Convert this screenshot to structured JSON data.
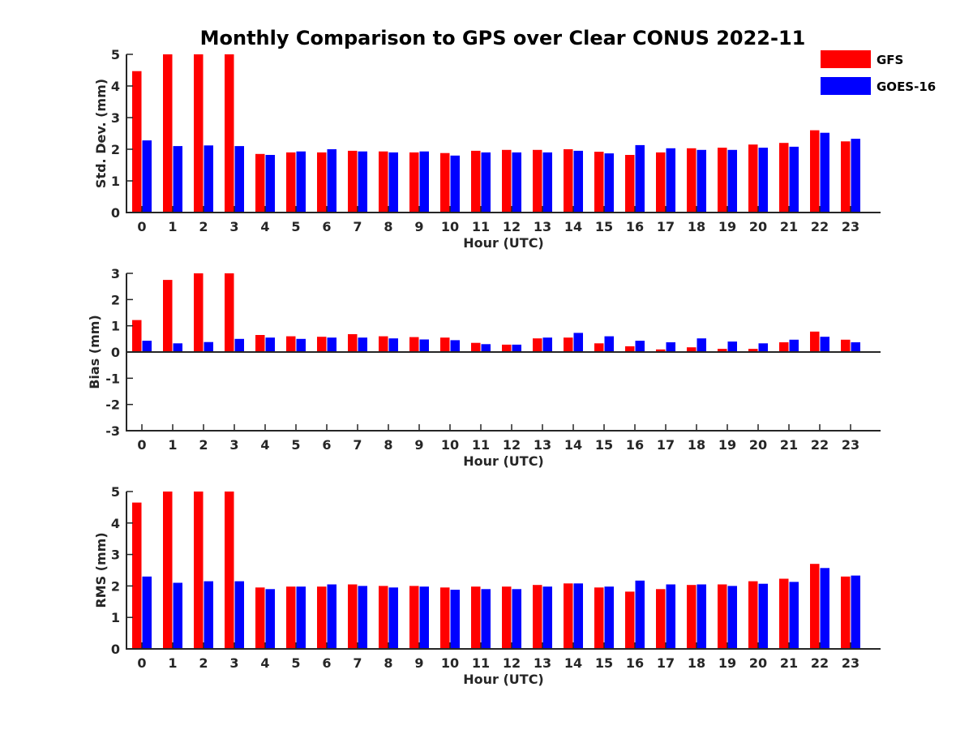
{
  "title": "Monthly Comparison to GPS over Clear CONUS 2022-11",
  "colors": {
    "GFS": "#ff0000",
    "GOES-16": "#0000ff"
  },
  "chart_data": [
    {
      "type": "bar",
      "ylabel": "Std. Dev. (mm)",
      "xlabel": "Hour (UTC)",
      "ylim": [
        0,
        5
      ],
      "yticks": [
        "0",
        "1",
        "2",
        "3",
        "4",
        "5"
      ],
      "categories": [
        "0",
        "1",
        "2",
        "3",
        "4",
        "5",
        "6",
        "7",
        "8",
        "9",
        "10",
        "11",
        "12",
        "13",
        "14",
        "15",
        "16",
        "17",
        "18",
        "19",
        "20",
        "21",
        "22",
        "23"
      ],
      "series": [
        {
          "name": "GFS",
          "values": [
            4.47,
            5.0,
            5.0,
            5.0,
            1.85,
            1.9,
            1.9,
            1.95,
            1.93,
            1.9,
            1.88,
            1.95,
            1.98,
            1.98,
            2.0,
            1.92,
            1.82,
            1.9,
            2.03,
            2.05,
            2.15,
            2.2,
            2.6,
            2.25
          ]
        },
        {
          "name": "GOES-16",
          "values": [
            2.28,
            2.1,
            2.12,
            2.1,
            1.82,
            1.93,
            2.0,
            1.93,
            1.9,
            1.93,
            1.8,
            1.9,
            1.9,
            1.9,
            1.95,
            1.87,
            2.13,
            2.03,
            1.98,
            1.98,
            2.05,
            2.08,
            2.52,
            2.33
          ]
        }
      ]
    },
    {
      "type": "bar",
      "ylabel": "Bias (mm)",
      "xlabel": "Hour (UTC)",
      "ylim": [
        -3,
        3
      ],
      "yticks": [
        "-3",
        "-2",
        "-1",
        "0",
        "1",
        "2",
        "3"
      ],
      "categories": [
        "0",
        "1",
        "2",
        "3",
        "4",
        "5",
        "6",
        "7",
        "8",
        "9",
        "10",
        "11",
        "12",
        "13",
        "14",
        "15",
        "16",
        "17",
        "18",
        "19",
        "20",
        "21",
        "22",
        "23"
      ],
      "series": [
        {
          "name": "GFS",
          "values": [
            1.22,
            2.75,
            3.0,
            3.0,
            0.65,
            0.6,
            0.58,
            0.68,
            0.6,
            0.57,
            0.55,
            0.35,
            0.28,
            0.52,
            0.55,
            0.33,
            0.22,
            0.1,
            0.18,
            0.12,
            0.12,
            0.37,
            0.78,
            0.47
          ]
        },
        {
          "name": "GOES-16",
          "values": [
            0.43,
            0.33,
            0.38,
            0.5,
            0.55,
            0.5,
            0.55,
            0.55,
            0.52,
            0.48,
            0.45,
            0.3,
            0.28,
            0.55,
            0.73,
            0.6,
            0.43,
            0.37,
            0.52,
            0.4,
            0.33,
            0.47,
            0.58,
            0.37
          ]
        }
      ]
    },
    {
      "type": "bar",
      "ylabel": "RMS (mm)",
      "xlabel": "Hour (UTC)",
      "ylim": [
        0,
        5
      ],
      "yticks": [
        "0",
        "1",
        "2",
        "3",
        "4",
        "5"
      ],
      "categories": [
        "0",
        "1",
        "2",
        "3",
        "4",
        "5",
        "6",
        "7",
        "8",
        "9",
        "10",
        "11",
        "12",
        "13",
        "14",
        "15",
        "16",
        "17",
        "18",
        "19",
        "20",
        "21",
        "22",
        "23"
      ],
      "series": [
        {
          "name": "GFS",
          "values": [
            4.65,
            5.0,
            5.0,
            5.0,
            1.95,
            1.98,
            1.98,
            2.05,
            2.0,
            2.0,
            1.95,
            1.98,
            1.98,
            2.03,
            2.08,
            1.95,
            1.82,
            1.9,
            2.03,
            2.05,
            2.15,
            2.23,
            2.7,
            2.3
          ]
        },
        {
          "name": "GOES-16",
          "values": [
            2.3,
            2.1,
            2.15,
            2.15,
            1.9,
            1.98,
            2.05,
            2.0,
            1.95,
            1.98,
            1.88,
            1.9,
            1.9,
            1.98,
            2.08,
            1.98,
            2.17,
            2.05,
            2.05,
            2.0,
            2.07,
            2.13,
            2.57,
            2.33
          ]
        }
      ]
    }
  ],
  "legend": {
    "placement": "top-right",
    "entries": [
      "GFS",
      "GOES-16"
    ]
  }
}
